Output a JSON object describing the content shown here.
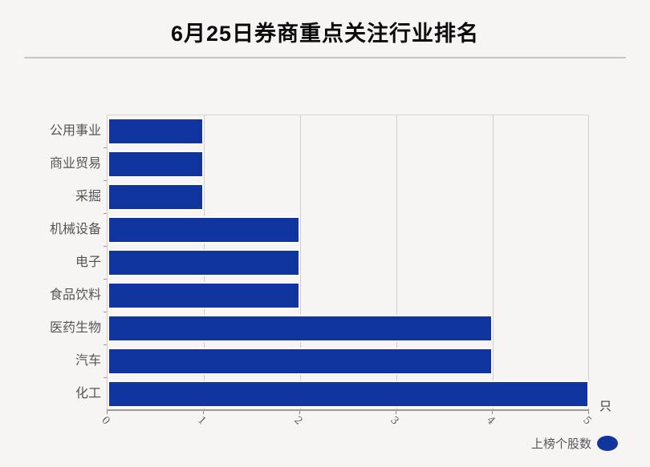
{
  "header": {
    "title": "6月25日券商重点关注行业排名"
  },
  "chart_data": {
    "type": "bar",
    "orientation": "horizontal",
    "title": "6月25日券商重点关注行业排名",
    "categories": [
      "公用事业",
      "商业贸易",
      "采掘",
      "机械设备",
      "电子",
      "食品饮料",
      "医药生物",
      "汽车",
      "化工"
    ],
    "values": [
      1,
      1,
      1,
      2,
      2,
      2,
      4,
      4,
      5
    ],
    "series_name": "上榜个股数",
    "xlim": [
      0,
      5
    ],
    "xticks": [
      0,
      1,
      2,
      3,
      4,
      5
    ],
    "x_unit": "只",
    "grid": true,
    "legend_position": "bottom-right",
    "bar_color": "#11359f",
    "background_color": "#f7f4f4"
  },
  "axis": {
    "unit_label": "只"
  },
  "legend": {
    "label": "上榜个股数",
    "marker_color": "#11359f"
  }
}
